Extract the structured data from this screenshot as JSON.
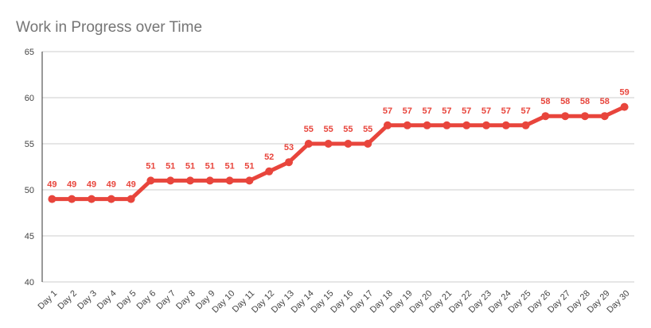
{
  "chart_data": {
    "type": "line",
    "title": "Work in Progress over Time",
    "categories": [
      "Day 1",
      "Day 2",
      "Day 3",
      "Day 4",
      "Day 5",
      "Day 6",
      "Day 7",
      "Day 8",
      "Day 9",
      "Day 10",
      "Day 11",
      "Day 12",
      "Day 13",
      "Day 14",
      "Day 15",
      "Day 16",
      "Day 17",
      "Day 18",
      "Day 19",
      "Day 20",
      "Day 21",
      "Day 22",
      "Day 23",
      "Day 24",
      "Day 25",
      "Day 26",
      "Day 27",
      "Day 28",
      "Day 29",
      "Day 30"
    ],
    "series": [
      {
        "name": "Work in Progress",
        "color": "#e8453c",
        "values": [
          49,
          49,
          49,
          49,
          49,
          51,
          51,
          51,
          51,
          51,
          51,
          52,
          53,
          55,
          55,
          55,
          55,
          57,
          57,
          57,
          57,
          57,
          57,
          57,
          57,
          58,
          58,
          58,
          58,
          59
        ]
      }
    ],
    "ylim": [
      40,
      65
    ],
    "yticks": [
      40,
      45,
      50,
      55,
      60,
      65
    ],
    "grid": true
  }
}
